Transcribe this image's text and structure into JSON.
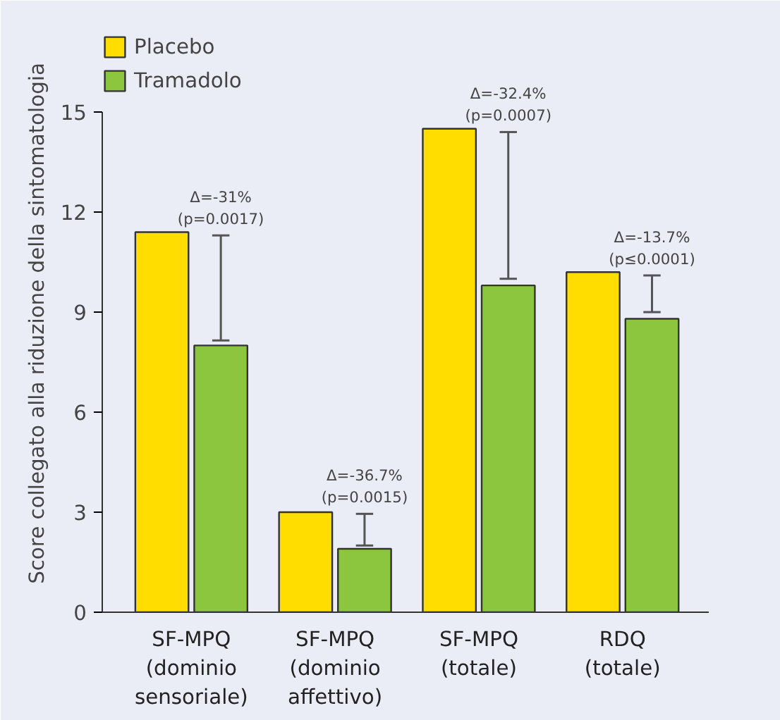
{
  "chart_data": {
    "type": "bar",
    "ylabel": "Score collegato alla riduzione della sintomatologia",
    "categories": [
      "SF-MPQ\n(dominio\nsensoriale)",
      "SF-MPQ\n(dominio\naffettivo)",
      "SF-MPQ\n(totale)",
      "RDQ\n(totale)"
    ],
    "series": [
      {
        "name": "Placebo",
        "color": "#ffdd00",
        "values": [
          11.4,
          3.0,
          14.5,
          10.2
        ]
      },
      {
        "name": "Tramadolo",
        "color": "#8cc63f",
        "values": [
          8.0,
          1.9,
          9.8,
          8.8
        ],
        "errors": [
          [
            8.15,
            11.3
          ],
          [
            2.0,
            2.95
          ],
          [
            10.0,
            14.4
          ],
          [
            9.0,
            10.1
          ]
        ]
      }
    ],
    "ylim": [
      0,
      15
    ],
    "yticks": [
      0,
      3,
      6,
      9,
      12,
      15
    ],
    "grid": false,
    "legend": "top left",
    "annotations": [
      {
        "text": "Δ=-31%\n(p=0.0017)",
        "x": "SF-MPQ\n(dominio\nsensoriale)",
        "y": 11.3
      },
      {
        "text": "Δ=-36.7%\n(p=0.0015)",
        "x": "SF-MPQ\n(dominio\naffettivo)",
        "y": 2.95
      },
      {
        "text": "Δ=-32.4%\n(p=0.0007)",
        "x": "SF-MPQ\n(totale)",
        "y": 14.4
      },
      {
        "text": "Δ=-13.7%\n(p≤0.0001)",
        "x": "RDQ\n(totale)",
        "y": 10.1
      }
    ]
  }
}
